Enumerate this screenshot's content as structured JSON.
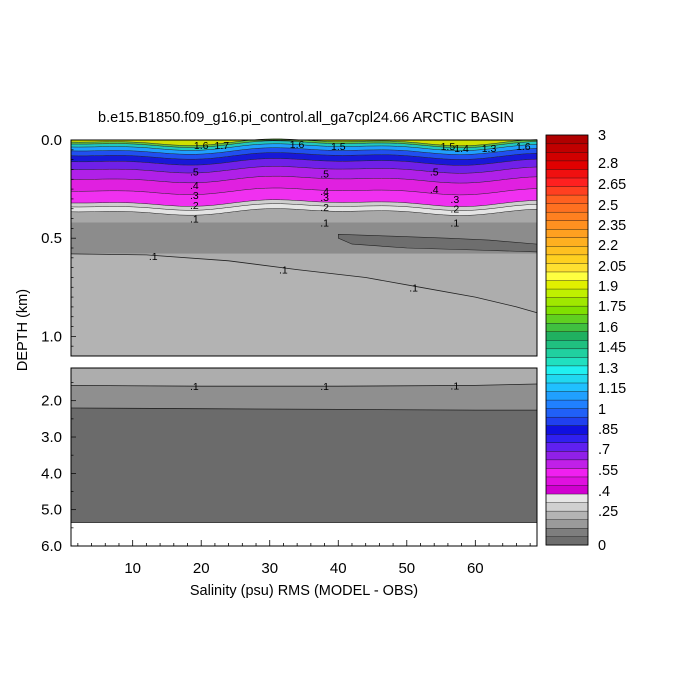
{
  "chart_data": {
    "type": "heatmap",
    "title": "b.e15.B1850.f09_g16.pi_control.all_ga7cpl24.66 ARCTIC BASIN",
    "xlabel": "Salinity (psu) RMS (MODEL - OBS)",
    "ylabel": "DEPTH (km)",
    "xlim": [
      1,
      69
    ],
    "x_ticks": [
      10,
      20,
      30,
      40,
      50,
      60
    ],
    "x_tick_labels": [
      "10",
      "20",
      "30",
      "40",
      "50",
      "60"
    ],
    "upper_panel": {
      "ylim": [
        0.0,
        1.1
      ],
      "y_ticks": [
        0.0,
        0.5,
        1.0
      ],
      "y_tick_labels": [
        "0.0",
        "0.5",
        "1.0"
      ]
    },
    "lower_panel": {
      "ylim": [
        1.1,
        6.0
      ],
      "y_ticks": [
        2.0,
        3.0,
        4.0,
        5.0,
        6.0
      ],
      "y_tick_labels": [
        "2.0",
        "3.0",
        "4.0",
        "5.0",
        "6.0"
      ]
    },
    "colorbar": {
      "min": 0,
      "max": 3,
      "labels": [
        "3",
        "2.8",
        "2.65",
        "2.5",
        "2.35",
        "2.2",
        "2.05",
        "1.9",
        "1.75",
        "1.6",
        "1.45",
        "1.3",
        "1.15",
        "1",
        ".85",
        ".7",
        ".55",
        ".4",
        ".25",
        "0"
      ],
      "colors": [
        "#6e6e6e",
        "#7e7e7e",
        "#9a9a9a",
        "#b4b4b4",
        "#d0d0d0",
        "#e6e6e6",
        "#d000d0",
        "#e010e0",
        "#f020f0",
        "#c020e8",
        "#9020e8",
        "#6020f0",
        "#3020f0",
        "#1010e0",
        "#2040f0",
        "#2060f8",
        "#2080ff",
        "#20a0ff",
        "#20c0ff",
        "#20d8f0",
        "#20f0f0",
        "#20e0c0",
        "#20d0a0",
        "#20c080",
        "#20b060",
        "#40c040",
        "#60d020",
        "#80e000",
        "#a0e800",
        "#c0f000",
        "#e0f000",
        "#ffff40",
        "#ffe030",
        "#ffd020",
        "#ffc020",
        "#ffb020",
        "#ffa020",
        "#ff9020",
        "#ff8020",
        "#ff7020",
        "#ff6020",
        "#ff4020",
        "#ff2020",
        "#f01010",
        "#e00000",
        "#d00000",
        "#c00000",
        "#b00000"
      ]
    },
    "contour_labels_upper": [
      {
        "x": 20,
        "depth": 0.025,
        "text": "1.6"
      },
      {
        "x": 23,
        "depth": 0.025,
        "text": "1.7"
      },
      {
        "x": 34,
        "depth": 0.02,
        "text": "1.6"
      },
      {
        "x": 40,
        "depth": 0.03,
        "text": "1.5"
      },
      {
        "x": 56,
        "depth": 0.03,
        "text": "1.5"
      },
      {
        "x": 58,
        "depth": 0.04,
        "text": "1.4"
      },
      {
        "x": 62,
        "depth": 0.04,
        "text": "1.3"
      },
      {
        "x": 67,
        "depth": 0.03,
        "text": "1.6"
      },
      {
        "x": 19,
        "depth": 0.16,
        "text": ".5"
      },
      {
        "x": 38,
        "depth": 0.17,
        "text": ".5"
      },
      {
        "x": 54,
        "depth": 0.16,
        "text": ".5"
      },
      {
        "x": 19,
        "depth": 0.23,
        "text": ".4"
      },
      {
        "x": 38,
        "depth": 0.26,
        "text": ".4"
      },
      {
        "x": 54,
        "depth": 0.25,
        "text": ".4"
      },
      {
        "x": 19,
        "depth": 0.28,
        "text": ".3"
      },
      {
        "x": 38,
        "depth": 0.29,
        "text": ".3"
      },
      {
        "x": 57,
        "depth": 0.3,
        "text": ".3"
      },
      {
        "x": 19,
        "depth": 0.33,
        "text": ".2"
      },
      {
        "x": 38,
        "depth": 0.34,
        "text": ".2"
      },
      {
        "x": 57,
        "depth": 0.35,
        "text": ".2"
      },
      {
        "x": 19,
        "depth": 0.4,
        "text": ".1"
      },
      {
        "x": 38,
        "depth": 0.42,
        "text": ".1"
      },
      {
        "x": 57,
        "depth": 0.42,
        "text": ".1"
      },
      {
        "x": 13,
        "depth": 0.59,
        "text": ".1"
      },
      {
        "x": 32,
        "depth": 0.66,
        "text": ".1"
      },
      {
        "x": 51,
        "depth": 0.75,
        "text": ".1"
      }
    ],
    "contour_labels_lower": [
      {
        "x": 19,
        "depth": 1.6,
        "text": ".1"
      },
      {
        "x": 38,
        "depth": 1.6,
        "text": ".1"
      },
      {
        "x": 57,
        "depth": 1.58,
        "text": ".1"
      }
    ],
    "grid": false,
    "legend": "colorbar-right"
  }
}
